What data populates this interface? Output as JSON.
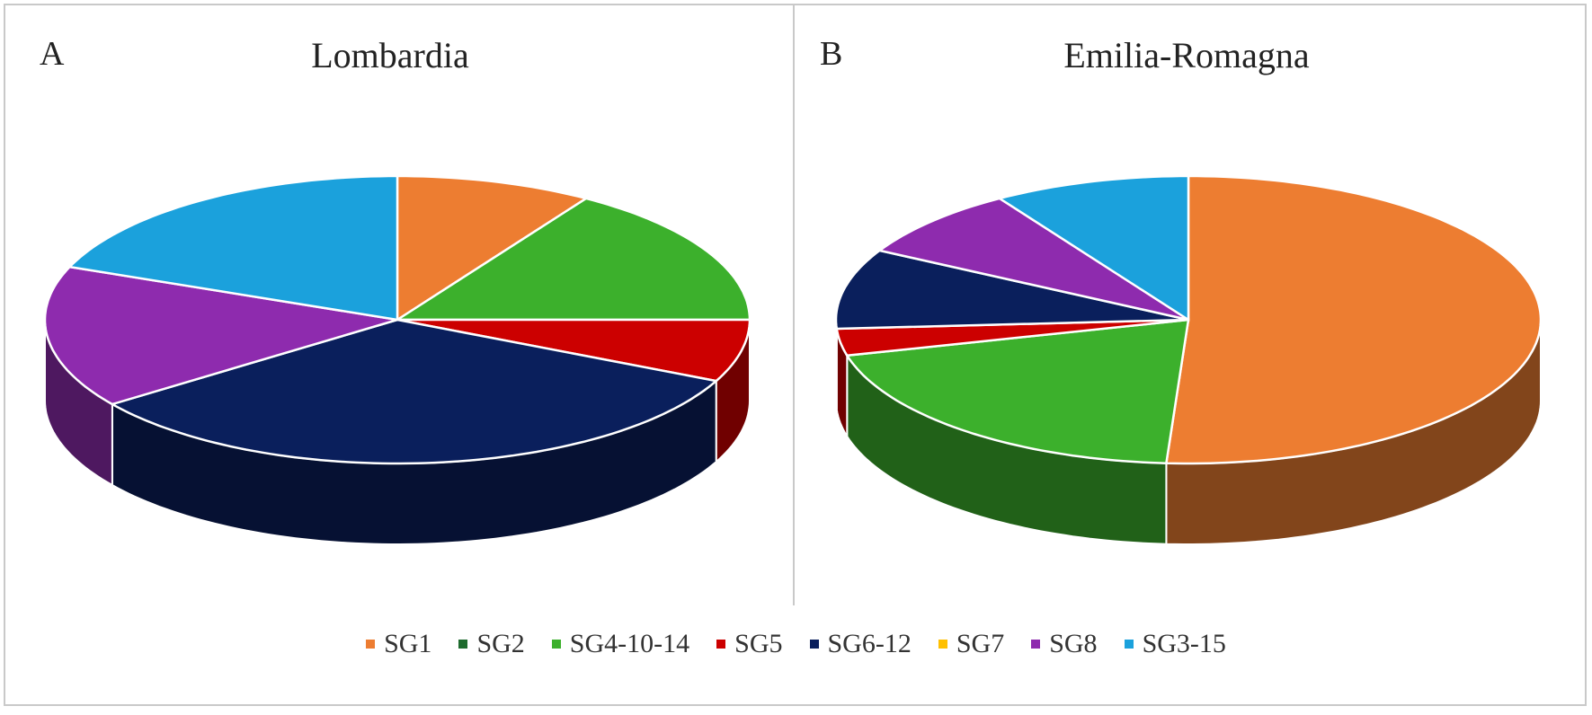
{
  "legend": [
    {
      "label": "SG1",
      "color": "#ED7D31"
    },
    {
      "label": "SG2",
      "color": "#1E6B2E"
    },
    {
      "label": "SG4-10-14",
      "color": "#3CB02C"
    },
    {
      "label": "SG5",
      "color": "#CC0000"
    },
    {
      "label": "SG6-12",
      "color": "#0A1F5C"
    },
    {
      "label": "SG7",
      "color": "#FFC000"
    },
    {
      "label": "SG8",
      "color": "#8E2BAE"
    },
    {
      "label": "SG3-15",
      "color": "#1BA1DC"
    }
  ],
  "chart_data": [
    {
      "type": "pie",
      "panel": "A",
      "title": "Lombardia",
      "categories": [
        "SG1",
        "SG2",
        "SG4-10-14",
        "SG5",
        "SG6-12",
        "SG7",
        "SG8",
        "SG3-15"
      ],
      "values": [
        9,
        0,
        16,
        7,
        33,
        0,
        16,
        19
      ]
    },
    {
      "type": "pie",
      "panel": "B",
      "title": "Emilia-Romagna",
      "categories": [
        "SG1",
        "SG2",
        "SG4-10-14",
        "SG5",
        "SG6-12",
        "SG7",
        "SG8",
        "SG3-15"
      ],
      "values": [
        51,
        0,
        20,
        3,
        9,
        0,
        8,
        9
      ]
    }
  ]
}
